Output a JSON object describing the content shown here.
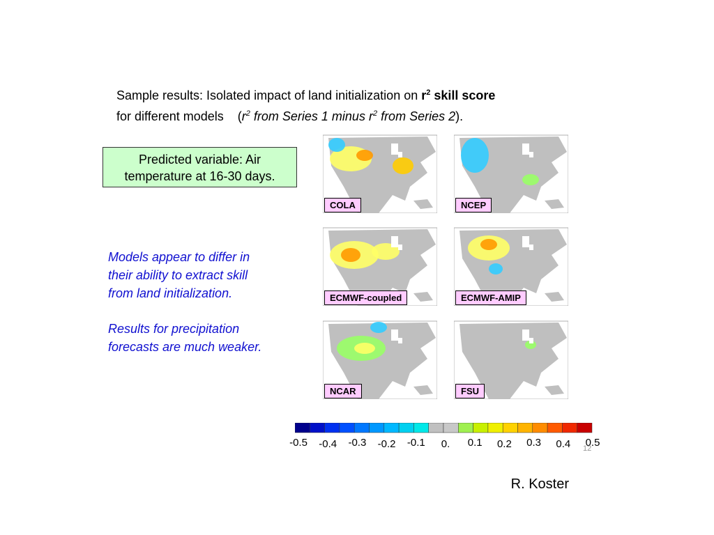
{
  "title_parts": [
    "Sample results: Isolated impact of land initialization on ",
    "r",
    "2",
    " skill score",
    "for different models",
    "(",
    "r",
    "2",
    " from Series 1 minus r",
    "2",
    " from Series 2",
    ")."
  ],
  "box": {
    "lines": [
      "Predicted variable: Air",
      "temperature at 16-30 days."
    ]
  },
  "notes": [
    [
      "Models appear to differ in",
      "their ability to extract skill",
      "from land initialization."
    ],
    [
      "Results for precipitation",
      "forecasts are much weaker."
    ]
  ],
  "models": [
    "COLA",
    "NCEP",
    "ECMWF-coupled",
    "ECMWF-AMIP",
    "NCAR",
    "FSU"
  ],
  "colorbar_labels": [
    "-0.5",
    "-0.4",
    "-0.3",
    "-0.2",
    "-0.1",
    "0.",
    "0.1",
    "0.2",
    "0.3",
    "0.4",
    "0.5"
  ],
  "page_number": "12",
  "author": "R. Koster"
}
